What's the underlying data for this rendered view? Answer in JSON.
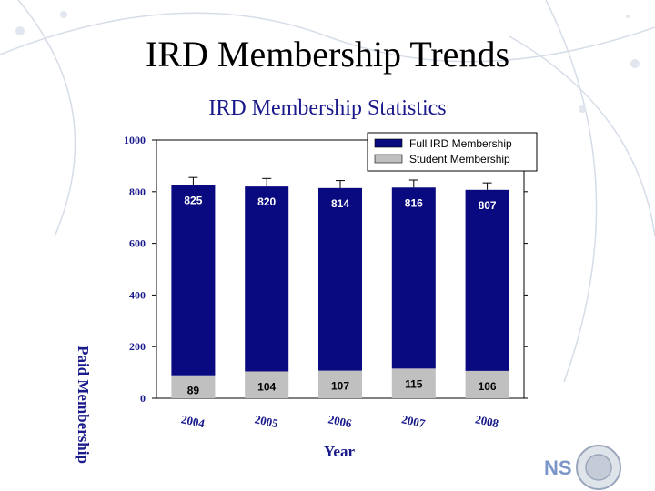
{
  "slide": {
    "title": "IRD Membership Trends"
  },
  "logo": {
    "text": "NS"
  },
  "colors": {
    "full": "#0a0a80",
    "student": "#c0c0c0",
    "text": "#1a1a8c",
    "background": "#ffffff"
  },
  "chart_data": {
    "type": "bar",
    "stacked": true,
    "title": "IRD Membership Statistics",
    "xlabel": "Year",
    "ylabel": "Paid Membership",
    "ylim": [
      0,
      1000
    ],
    "yticks": [
      0,
      200,
      400,
      600,
      800,
      1000
    ],
    "categories": [
      "2004",
      "2005",
      "2006",
      "2007",
      "2008"
    ],
    "series": [
      {
        "name": "Student Membership",
        "values": [
          89,
          104,
          107,
          115,
          106
        ],
        "color": "#c0c0c0"
      },
      {
        "name": "Full IRD Membership",
        "values": [
          825,
          820,
          814,
          816,
          807
        ],
        "color": "#0a0a80"
      }
    ],
    "error_bars": [
      855,
      851,
      843,
      845,
      834
    ],
    "legend": "top-right",
    "grid": false
  }
}
